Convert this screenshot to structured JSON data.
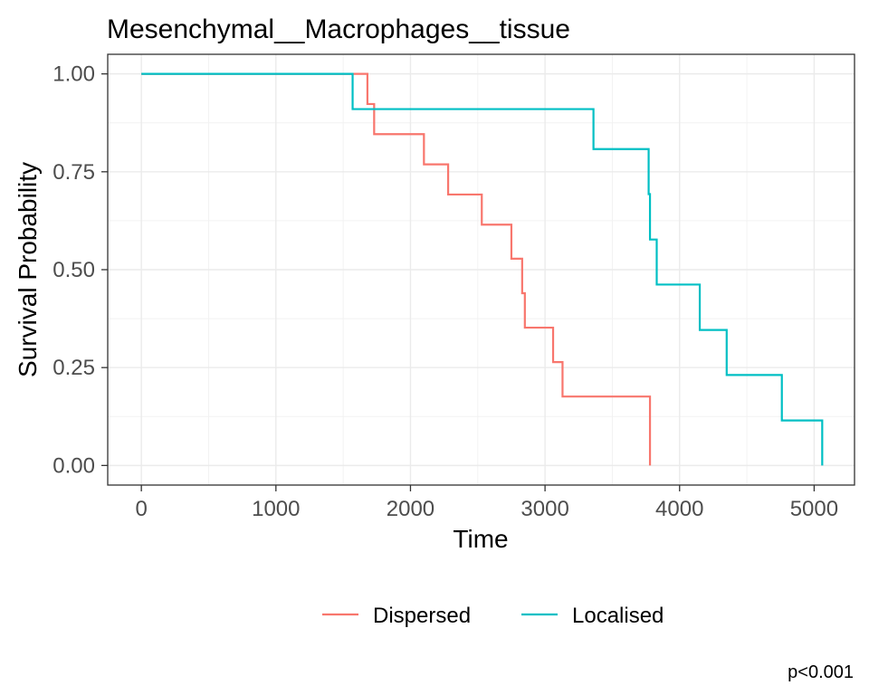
{
  "chart_data": {
    "type": "line",
    "title": "Mesenchymal__Macrophages__tissue",
    "xlabel": "Time",
    "ylabel": "Survival Probability",
    "xlim": [
      -250,
      5300
    ],
    "ylim": [
      -0.05,
      1.05
    ],
    "x_ticks": [
      0,
      1000,
      2000,
      3000,
      4000,
      5000
    ],
    "x_tick_labels": [
      "0",
      "1000",
      "2000",
      "3000",
      "4000",
      "5000"
    ],
    "y_ticks": [
      0,
      0.25,
      0.5,
      0.75,
      1.0
    ],
    "y_tick_labels": [
      "0.00",
      "0.25",
      "0.50",
      "0.75",
      "1.00"
    ],
    "grid": true,
    "legend_position": "bottom",
    "annotation": "p<0.001",
    "series": [
      {
        "name": "Dispersed",
        "color": "#F8766D",
        "step": true,
        "points": [
          [
            0,
            1.0
          ],
          [
            1680,
            0.923
          ],
          [
            1730,
            0.846
          ],
          [
            2100,
            0.769
          ],
          [
            2280,
            0.692
          ],
          [
            2530,
            0.615
          ],
          [
            2750,
            0.528
          ],
          [
            2830,
            0.44
          ],
          [
            2850,
            0.352
          ],
          [
            3060,
            0.264
          ],
          [
            3130,
            0.176
          ],
          [
            3780,
            0.0
          ]
        ]
      },
      {
        "name": "Localised",
        "color": "#00BFC4",
        "step": true,
        "points": [
          [
            0,
            1.0
          ],
          [
            1570,
            0.91
          ],
          [
            3360,
            0.808
          ],
          [
            3770,
            0.693
          ],
          [
            3780,
            0.577
          ],
          [
            3830,
            0.462
          ],
          [
            4150,
            0.346
          ],
          [
            4350,
            0.231
          ],
          [
            4760,
            0.115
          ],
          [
            5060,
            0.0
          ]
        ]
      }
    ]
  }
}
